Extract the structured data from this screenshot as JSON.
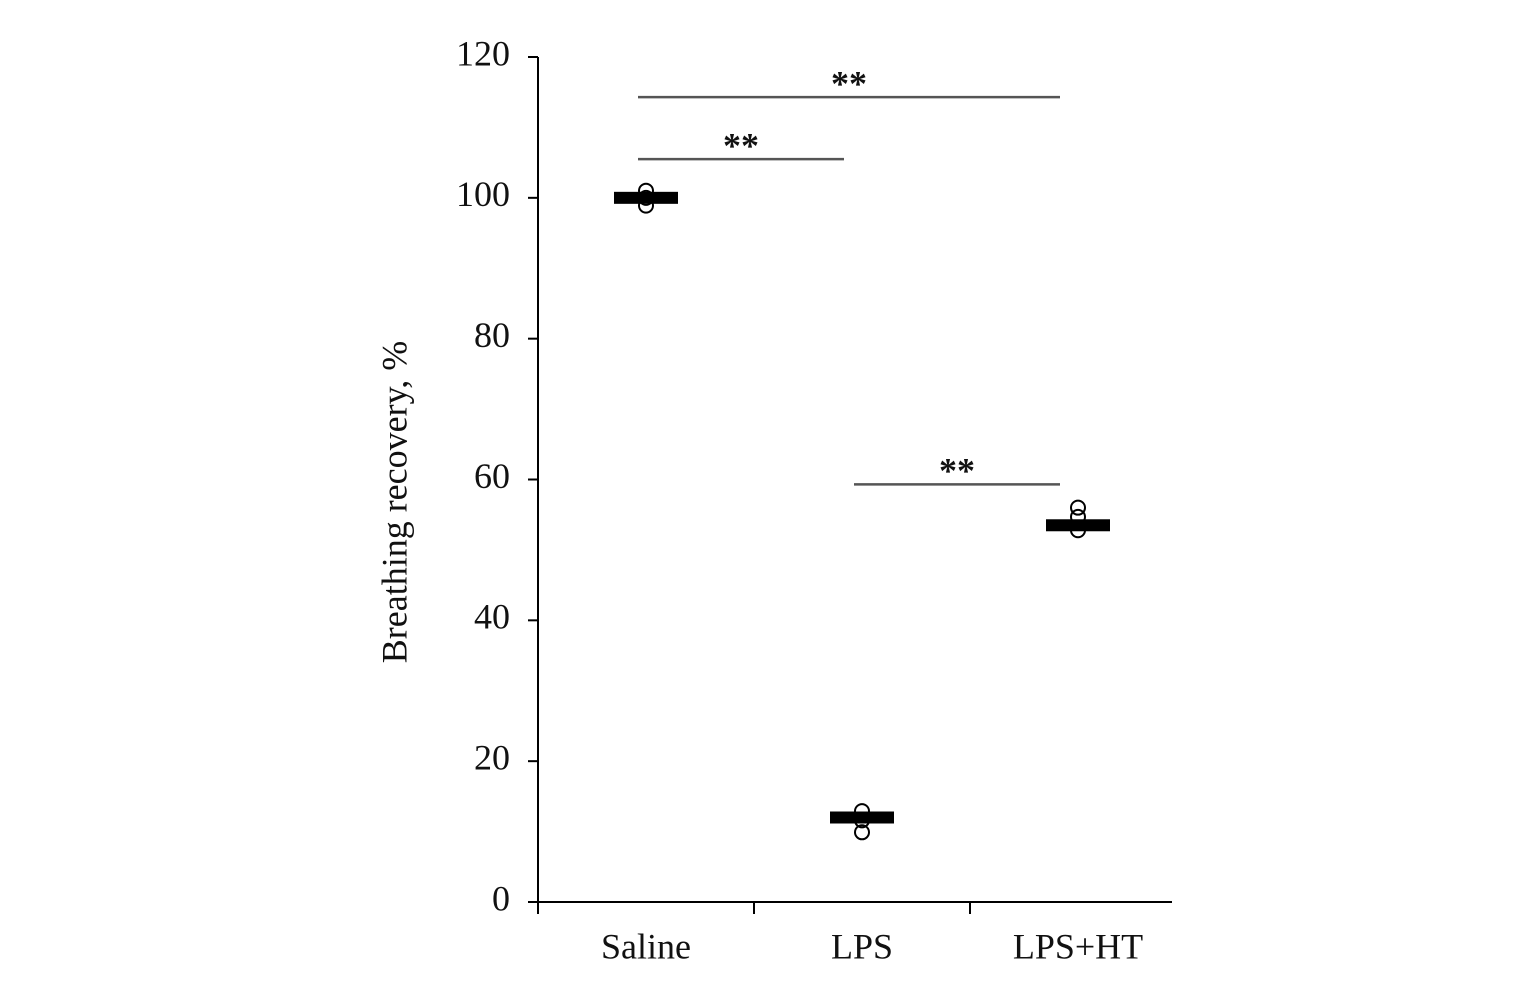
{
  "chart_data": {
    "type": "dot",
    "y_label": "Breathing recovery, %",
    "categories": [
      "Saline",
      "LPS",
      "LPS+HT"
    ],
    "values": [
      100,
      12,
      53.5
    ],
    "points": [
      [
        101,
        98.9,
        100
      ],
      [
        12.9,
        9.9,
        11.6
      ],
      [
        56,
        54.7,
        52.8
      ]
    ],
    "color": "#000000",
    "ylim": [
      0,
      120
    ],
    "yticks": [
      0,
      20,
      40,
      60,
      80,
      100,
      120
    ],
    "comparisons": [
      {
        "groups": [
          "Saline",
          "LPS+HT"
        ],
        "y": 114.3,
        "label": "**"
      },
      {
        "groups": [
          "Saline",
          "LPS"
        ],
        "y": 105.5,
        "label": "**"
      },
      {
        "groups": [
          "LPS",
          "LPS+HT"
        ],
        "y": 59.3,
        "label": "**"
      }
    ]
  }
}
